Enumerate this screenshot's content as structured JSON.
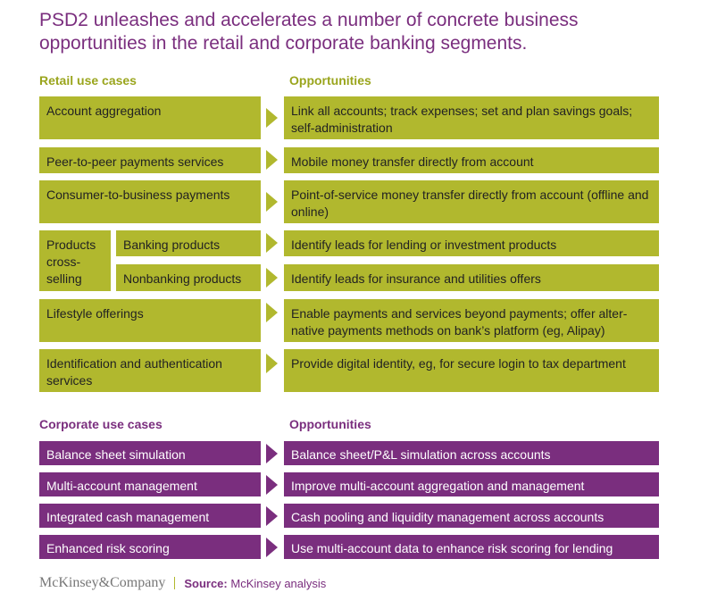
{
  "title": "PSD2 unleashes and accelerates a number of concrete business opportunities in the retail and corporate banking segments.",
  "retail": {
    "header_left": "Retail use cases",
    "header_right": "Opportunities",
    "rows": [
      {
        "use_case": "Account aggregation",
        "opportunity": "Link all accounts; track expenses; set and plan savings goals; self-administration"
      },
      {
        "use_case": "Peer-to-peer payments services",
        "opportunity": "Mobile money transfer directly from account"
      },
      {
        "use_case": "Consumer-to-business payments",
        "opportunity": "Point-of-service money transfer directly from account (offline and online)"
      },
      {
        "use_case": "Products cross-selling",
        "sub": [
          {
            "label": "Banking products",
            "opportunity": "Identify leads for lending or investment products"
          },
          {
            "label": "Nonbanking products",
            "opportunity": "Identify leads for insurance and utilities offers"
          }
        ]
      },
      {
        "use_case": "Lifestyle offerings",
        "opportunity": "Enable payments and services beyond payments; offer alter-native payments methods on bank’s platform (eg, Alipay)"
      },
      {
        "use_case": "Identification and authentication services",
        "opportunity": "Provide digital identity, eg, for secure login to tax department"
      }
    ]
  },
  "corporate": {
    "header_left": "Corporate use cases",
    "header_right": "Opportunities",
    "rows": [
      {
        "use_case": "Balance sheet simulation",
        "opportunity": "Balance sheet/P&L simulation across accounts"
      },
      {
        "use_case": "Multi-account management",
        "opportunity": "Improve multi-account aggregation and management"
      },
      {
        "use_case": "Integrated cash management",
        "opportunity": "Cash pooling and liquidity management across accounts"
      },
      {
        "use_case": "Enhanced risk scoring",
        "opportunity": "Use multi-account data to enhance risk scoring for lending"
      }
    ]
  },
  "footer": {
    "logo": "McKinsey&Company",
    "source_label": "Source:",
    "source_text": "McKinsey analysis"
  },
  "colors": {
    "retail": "#b1b82e",
    "corporate": "#7a2e7e",
    "title": "#7a2e7e"
  }
}
